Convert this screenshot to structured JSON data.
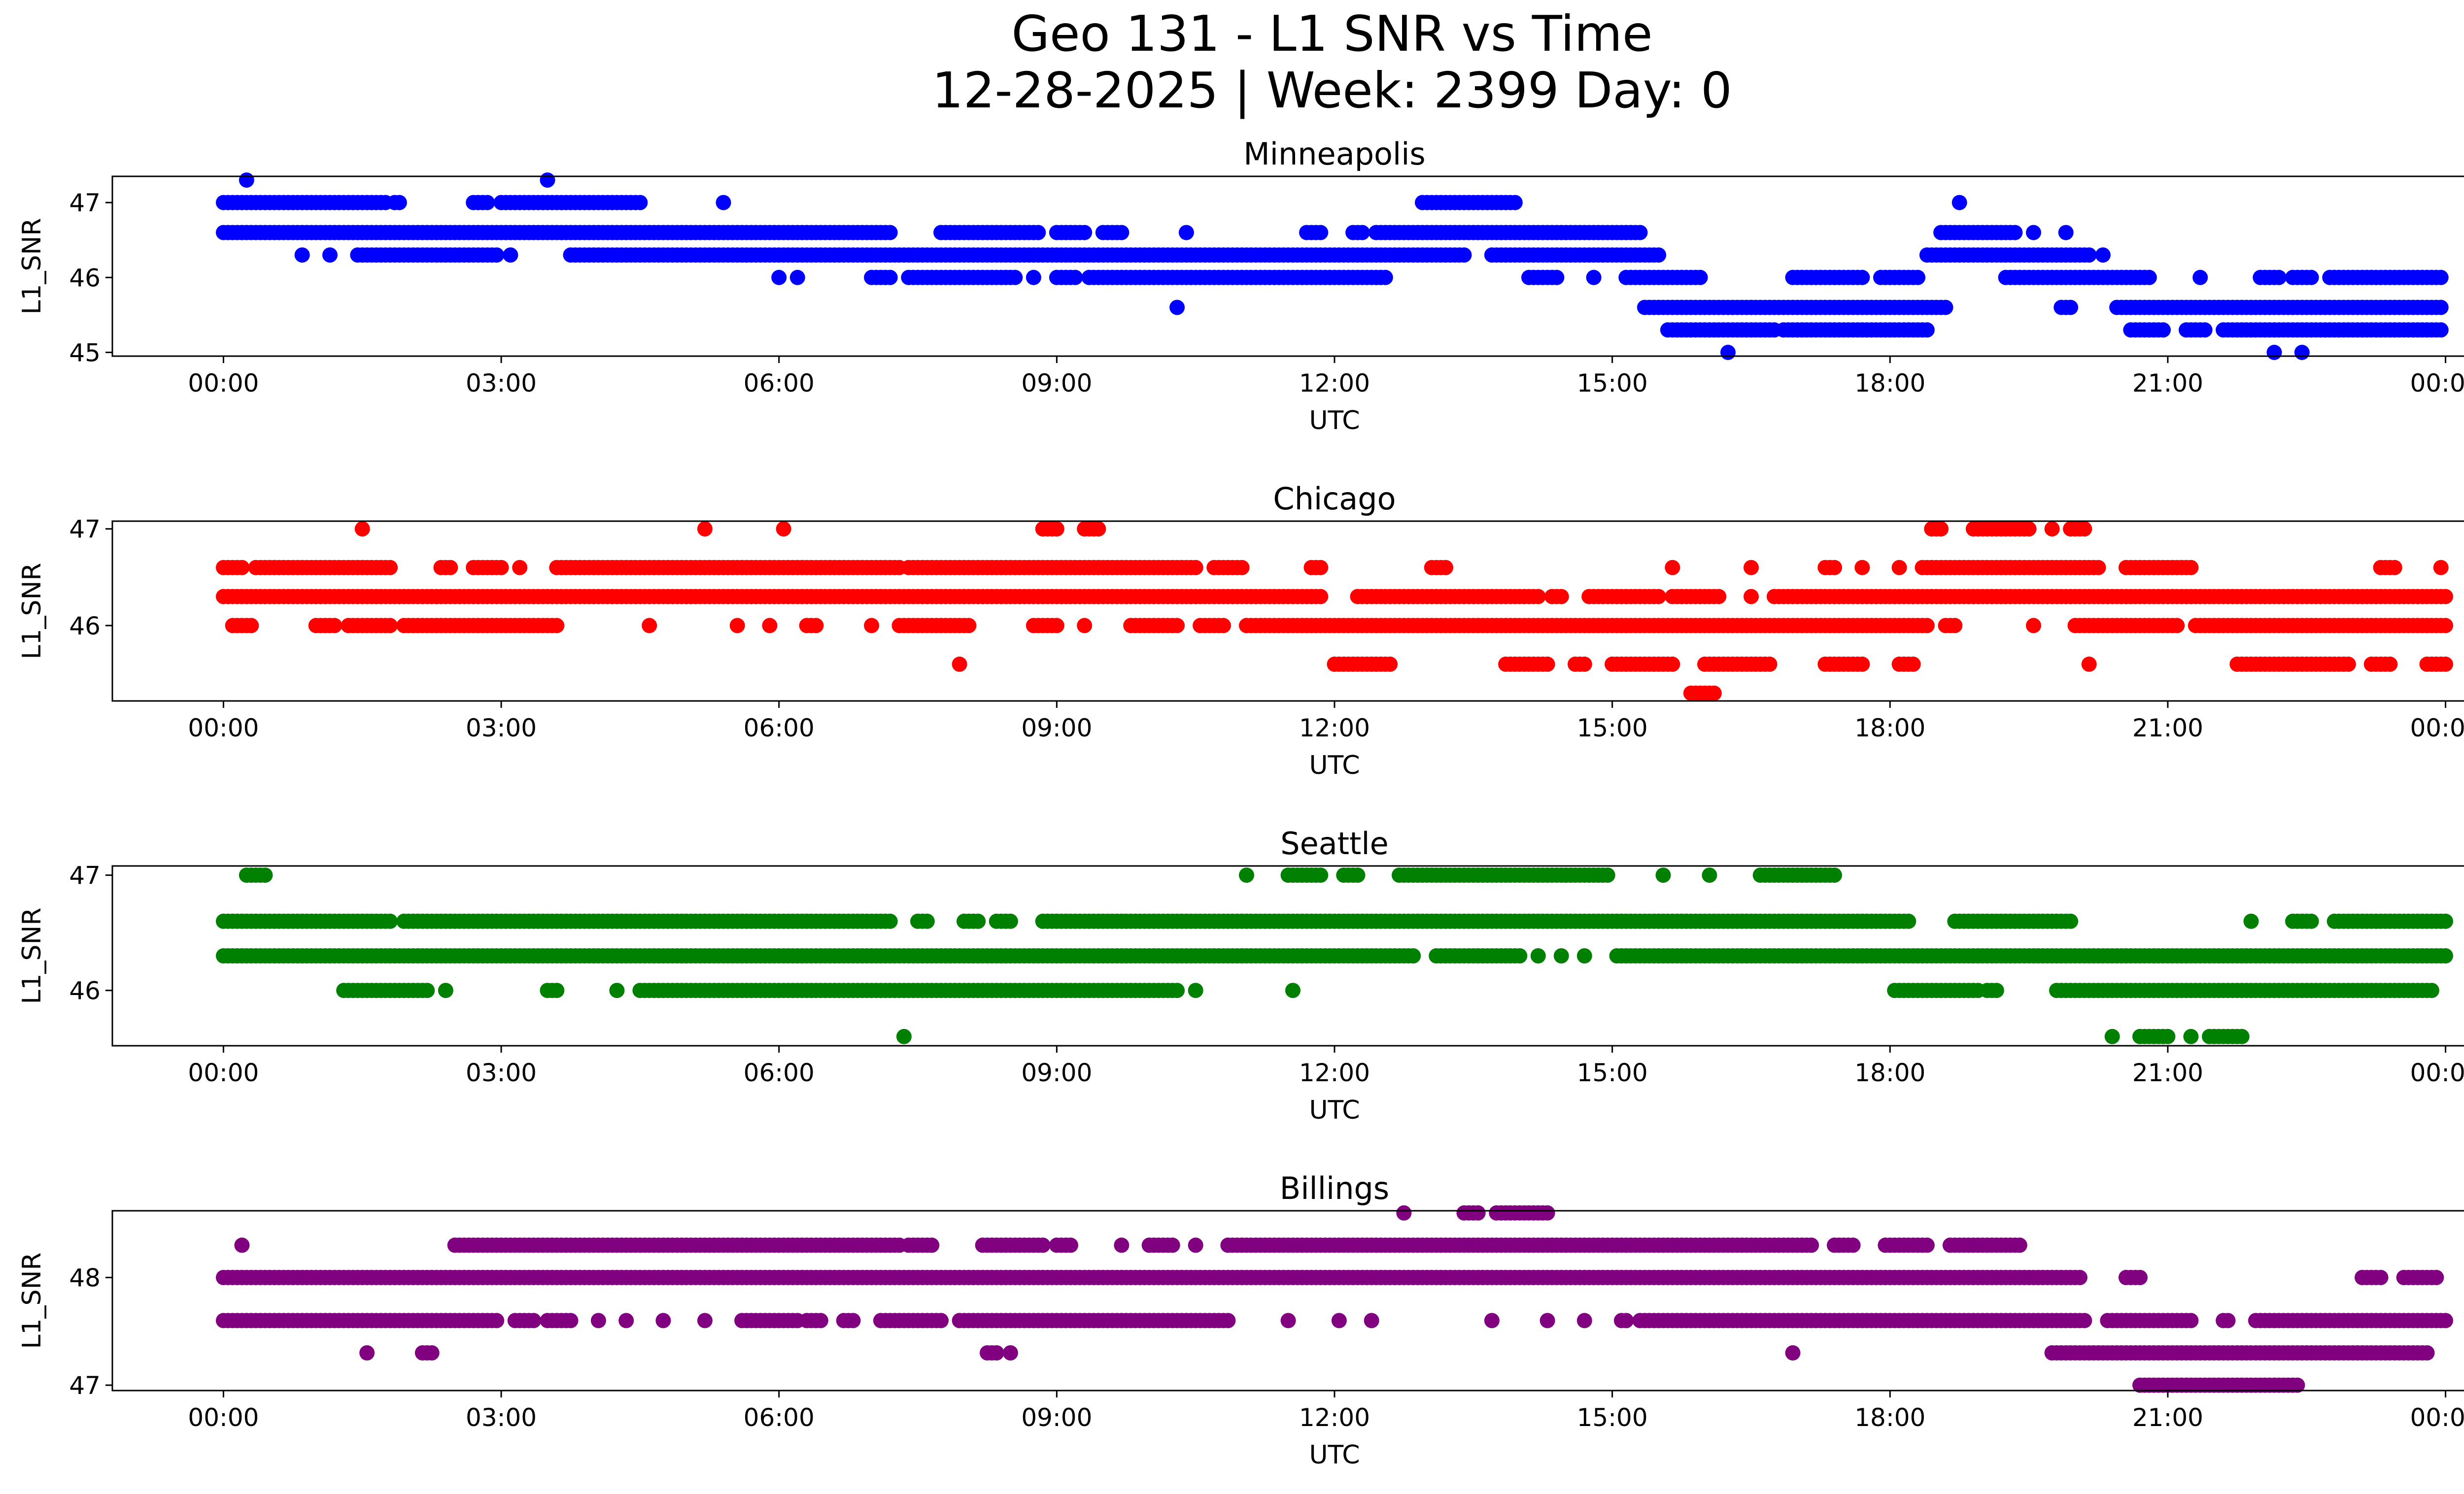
{
  "figure": {
    "title_line1": "Geo 131 - L1 SNR vs Time",
    "title_line2": "12-28-2025 | Week: 2399 Day: 0"
  },
  "chart_data": [
    {
      "type": "scatter",
      "title": "Minneapolis",
      "xlabel": "UTC",
      "ylabel": "L1_SNR",
      "color": "#0000ff",
      "xlim": [
        -1.2,
        25.2
      ],
      "ylim": [
        44.95,
        47.35
      ],
      "xticks": [
        0,
        3,
        6,
        9,
        12,
        15,
        18,
        21,
        24
      ],
      "xtick_labels": [
        "00:00",
        "03:00",
        "06:00",
        "09:00",
        "12:00",
        "15:00",
        "18:00",
        "21:00",
        "00:00"
      ],
      "yticks": [
        45,
        46,
        47
      ],
      "ytick_labels": [
        "45",
        "46",
        "47"
      ],
      "bands": [
        {
          "y": 47.3,
          "segments": [
            [
              0.25,
              0.25
            ],
            [
              3.5,
              3.5
            ]
          ]
        },
        {
          "y": 47.0,
          "segments": [
            [
              0,
              1.75
            ],
            [
              1.85,
              1.9
            ],
            [
              2.7,
              2.85
            ],
            [
              3.0,
              4.5
            ],
            [
              5.4,
              5.4
            ],
            [
              12.95,
              13.95
            ],
            [
              18.75,
              18.75
            ]
          ]
        },
        {
          "y": 46.6,
          "segments": [
            [
              0,
              7.2
            ],
            [
              7.75,
              8.8
            ],
            [
              9.0,
              9.3
            ],
            [
              9.5,
              9.7
            ],
            [
              10.4,
              10.4
            ],
            [
              11.7,
              11.85
            ],
            [
              12.2,
              12.3
            ],
            [
              12.45,
              15.3
            ],
            [
              18.55,
              19.35
            ],
            [
              19.55,
              19.55
            ],
            [
              19.9,
              19.9
            ]
          ]
        },
        {
          "y": 46.3,
          "segments": [
            [
              0.85,
              0.85
            ],
            [
              1.15,
              1.15
            ],
            [
              1.45,
              2.95
            ],
            [
              3.1,
              3.1
            ],
            [
              3.75,
              13.4
            ],
            [
              13.7,
              15.5
            ],
            [
              18.4,
              20.15
            ],
            [
              20.3,
              20.3
            ]
          ]
        },
        {
          "y": 46.0,
          "segments": [
            [
              6.0,
              6.0
            ],
            [
              6.2,
              6.2
            ],
            [
              7.0,
              7.2
            ],
            [
              7.4,
              8.55
            ],
            [
              8.75,
              8.75
            ],
            [
              9.0,
              9.2
            ],
            [
              9.35,
              12.55
            ],
            [
              14.1,
              14.4
            ],
            [
              14.8,
              14.8
            ],
            [
              15.15,
              15.95
            ],
            [
              16.95,
              17.7
            ],
            [
              17.9,
              18.3
            ],
            [
              19.25,
              20.8
            ],
            [
              21.35,
              21.35
            ],
            [
              22.0,
              22.2
            ],
            [
              22.35,
              22.55
            ],
            [
              22.75,
              23.95
            ]
          ]
        },
        {
          "y": 45.6,
          "segments": [
            [
              10.3,
              10.3
            ],
            [
              15.35,
              18.6
            ],
            [
              19.85,
              19.95
            ],
            [
              20.45,
              23.95
            ]
          ]
        },
        {
          "y": 45.3,
          "segments": [
            [
              15.6,
              16.75
            ],
            [
              16.85,
              18.4
            ],
            [
              20.6,
              20.95
            ],
            [
              21.2,
              21.4
            ],
            [
              21.6,
              23.95
            ]
          ]
        },
        {
          "y": 45.0,
          "segments": [
            [
              16.25,
              16.25
            ],
            [
              22.15,
              22.15
            ],
            [
              22.45,
              22.45
            ]
          ]
        }
      ]
    },
    {
      "type": "scatter",
      "title": "Chicago",
      "xlabel": "UTC",
      "ylabel": "L1_SNR",
      "color": "#ff0000",
      "xlim": [
        -1.2,
        25.2
      ],
      "ylim": [
        45.22,
        47.08
      ],
      "xticks": [
        0,
        3,
        6,
        9,
        12,
        15,
        18,
        21,
        24
      ],
      "xtick_labels": [
        "00:00",
        "03:00",
        "06:00",
        "09:00",
        "12:00",
        "15:00",
        "18:00",
        "21:00",
        "00:00"
      ],
      "yticks": [
        46,
        47
      ],
      "ytick_labels": [
        "46",
        "47"
      ],
      "bands": [
        {
          "y": 47.0,
          "segments": [
            [
              1.5,
              1.5
            ],
            [
              5.2,
              5.2
            ],
            [
              6.05,
              6.05
            ],
            [
              8.85,
              9.0
            ],
            [
              9.3,
              9.45
            ],
            [
              18.45,
              18.55
            ],
            [
              18.9,
              19.5
            ],
            [
              19.75,
              19.75
            ],
            [
              19.95,
              20.1
            ]
          ]
        },
        {
          "y": 46.6,
          "segments": [
            [
              0,
              0.2
            ],
            [
              0.35,
              1.8
            ],
            [
              2.35,
              2.45
            ],
            [
              2.7,
              3.0
            ],
            [
              3.2,
              3.2
            ],
            [
              3.6,
              7.3
            ],
            [
              7.4,
              10.5
            ],
            [
              10.7,
              11.0
            ],
            [
              11.75,
              11.85
            ],
            [
              13.05,
              13.2
            ],
            [
              15.65,
              15.65
            ],
            [
              16.5,
              16.5
            ],
            [
              17.3,
              17.4
            ],
            [
              17.7,
              17.7
            ],
            [
              18.1,
              18.1
            ],
            [
              18.35,
              20.25
            ],
            [
              20.55,
              21.25
            ],
            [
              23.3,
              23.45
            ],
            [
              23.95,
              23.95
            ]
          ]
        },
        {
          "y": 46.3,
          "segments": [
            [
              0,
              11.85
            ],
            [
              12.25,
              14.2
            ],
            [
              14.35,
              14.45
            ],
            [
              14.75,
              15.5
            ],
            [
              15.65,
              16.15
            ],
            [
              16.5,
              16.5
            ],
            [
              16.75,
              24.0
            ]
          ]
        },
        {
          "y": 46.0,
          "segments": [
            [
              0.1,
              0.3
            ],
            [
              1.0,
              1.2
            ],
            [
              1.35,
              1.8
            ],
            [
              1.95,
              3.6
            ],
            [
              4.6,
              4.6
            ],
            [
              5.55,
              5.55
            ],
            [
              5.9,
              5.9
            ],
            [
              6.3,
              6.4
            ],
            [
              7.0,
              7.0
            ],
            [
              7.3,
              8.05
            ],
            [
              8.75,
              9.0
            ],
            [
              9.3,
              9.3
            ],
            [
              9.8,
              10.3
            ],
            [
              10.55,
              10.8
            ],
            [
              11.05,
              18.4
            ],
            [
              18.6,
              18.7
            ],
            [
              19.55,
              19.55
            ],
            [
              20.0,
              21.1
            ],
            [
              21.3,
              24.0
            ]
          ]
        },
        {
          "y": 45.6,
          "segments": [
            [
              7.95,
              7.95
            ],
            [
              12.0,
              12.6
            ],
            [
              13.85,
              14.3
            ],
            [
              14.6,
              14.7
            ],
            [
              15.0,
              15.65
            ],
            [
              16.0,
              16.7
            ],
            [
              17.3,
              17.7
            ],
            [
              18.1,
              18.25
            ],
            [
              20.15,
              20.15
            ],
            [
              21.75,
              22.95
            ],
            [
              23.2,
              23.4
            ],
            [
              23.8,
              24.0
            ]
          ]
        },
        {
          "y": 45.3,
          "segments": [
            [
              15.85,
              16.1
            ]
          ]
        }
      ]
    },
    {
      "type": "scatter",
      "title": "Seattle",
      "xlabel": "UTC",
      "ylabel": "L1_SNR",
      "color": "#008000",
      "xlim": [
        -1.2,
        25.2
      ],
      "ylim": [
        45.52,
        47.08
      ],
      "xticks": [
        0,
        3,
        6,
        9,
        12,
        15,
        18,
        21,
        24
      ],
      "xtick_labels": [
        "00:00",
        "03:00",
        "06:00",
        "09:00",
        "12:00",
        "15:00",
        "18:00",
        "21:00",
        "00:00"
      ],
      "yticks": [
        46,
        47
      ],
      "ytick_labels": [
        "46",
        "47"
      ],
      "bands": [
        {
          "y": 47.0,
          "segments": [
            [
              0.25,
              0.45
            ],
            [
              11.05,
              11.05
            ],
            [
              11.5,
              11.85
            ],
            [
              12.1,
              12.25
            ],
            [
              12.7,
              14.95
            ],
            [
              15.55,
              15.55
            ],
            [
              16.05,
              16.05
            ],
            [
              16.6,
              17.4
            ]
          ]
        },
        {
          "y": 46.6,
          "segments": [
            [
              0,
              1.8
            ],
            [
              1.95,
              7.2
            ],
            [
              7.5,
              7.6
            ],
            [
              8.0,
              8.15
            ],
            [
              8.35,
              8.5
            ],
            [
              8.85,
              18.2
            ],
            [
              18.7,
              19.95
            ],
            [
              21.9,
              21.9
            ],
            [
              22.35,
              22.55
            ],
            [
              22.8,
              24.0
            ]
          ]
        },
        {
          "y": 46.3,
          "segments": [
            [
              0,
              12.85
            ],
            [
              13.1,
              14.0
            ],
            [
              14.2,
              14.2
            ],
            [
              14.45,
              14.45
            ],
            [
              14.7,
              14.7
            ],
            [
              15.05,
              24.0
            ]
          ]
        },
        {
          "y": 46.0,
          "segments": [
            [
              1.3,
              2.2
            ],
            [
              2.4,
              2.4
            ],
            [
              3.5,
              3.6
            ],
            [
              4.25,
              4.25
            ],
            [
              4.5,
              10.3
            ],
            [
              10.5,
              10.5
            ],
            [
              11.55,
              11.55
            ],
            [
              18.05,
              18.95
            ],
            [
              19.05,
              19.15
            ],
            [
              19.8,
              23.85
            ]
          ]
        },
        {
          "y": 45.6,
          "segments": [
            [
              7.35,
              7.35
            ],
            [
              20.4,
              20.4
            ],
            [
              20.7,
              21.0
            ],
            [
              21.25,
              21.25
            ],
            [
              21.45,
              21.8
            ]
          ]
        }
      ]
    },
    {
      "type": "scatter",
      "title": "Billings",
      "xlabel": "UTC",
      "ylabel": "L1_SNR",
      "color": "#800080",
      "xlim": [
        -1.2,
        25.2
      ],
      "ylim": [
        46.95,
        48.62
      ],
      "xticks": [
        0,
        3,
        6,
        9,
        12,
        15,
        18,
        21,
        24
      ],
      "xtick_labels": [
        "00:00",
        "03:00",
        "06:00",
        "09:00",
        "12:00",
        "15:00",
        "18:00",
        "21:00",
        "00:00"
      ],
      "yticks": [
        47,
        48
      ],
      "ytick_labels": [
        "47",
        "48"
      ],
      "bands": [
        {
          "y": 48.6,
          "segments": [
            [
              12.75,
              12.75
            ],
            [
              13.4,
              13.55
            ],
            [
              13.75,
              14.3
            ]
          ]
        },
        {
          "y": 48.3,
          "segments": [
            [
              0.2,
              0.2
            ],
            [
              2.5,
              7.3
            ],
            [
              7.4,
              7.65
            ],
            [
              8.2,
              8.85
            ],
            [
              9.0,
              9.15
            ],
            [
              9.7,
              9.7
            ],
            [
              10.0,
              10.25
            ],
            [
              10.5,
              10.5
            ],
            [
              10.85,
              17.15
            ],
            [
              17.4,
              17.6
            ],
            [
              17.95,
              18.4
            ],
            [
              18.65,
              19.4
            ]
          ]
        },
        {
          "y": 48.0,
          "segments": [
            [
              0,
              20.05
            ],
            [
              20.55,
              20.7
            ],
            [
              23.1,
              23.3
            ],
            [
              23.55,
              23.9
            ]
          ]
        },
        {
          "y": 47.6,
          "segments": [
            [
              0,
              2.95
            ],
            [
              3.15,
              3.35
            ],
            [
              3.5,
              3.75
            ],
            [
              4.05,
              4.05
            ],
            [
              4.35,
              4.35
            ],
            [
              4.75,
              4.75
            ],
            [
              5.2,
              5.2
            ],
            [
              5.6,
              6.2
            ],
            [
              6.3,
              6.45
            ],
            [
              6.7,
              6.8
            ],
            [
              7.1,
              7.75
            ],
            [
              7.95,
              10.85
            ],
            [
              11.5,
              11.5
            ],
            [
              12.05,
              12.05
            ],
            [
              12.4,
              12.4
            ],
            [
              13.7,
              13.7
            ],
            [
              14.3,
              14.3
            ],
            [
              14.7,
              14.7
            ],
            [
              15.1,
              15.15
            ],
            [
              15.3,
              20.1
            ],
            [
              20.35,
              21.25
            ],
            [
              21.6,
              21.65
            ],
            [
              21.95,
              24.0
            ]
          ]
        },
        {
          "y": 47.3,
          "segments": [
            [
              1.55,
              1.55
            ],
            [
              2.15,
              2.25
            ],
            [
              8.25,
              8.35
            ],
            [
              8.5,
              8.5
            ],
            [
              16.95,
              16.95
            ],
            [
              19.75,
              23.8
            ]
          ]
        },
        {
          "y": 47.0,
          "segments": [
            [
              20.7,
              22.4
            ]
          ]
        }
      ]
    }
  ]
}
